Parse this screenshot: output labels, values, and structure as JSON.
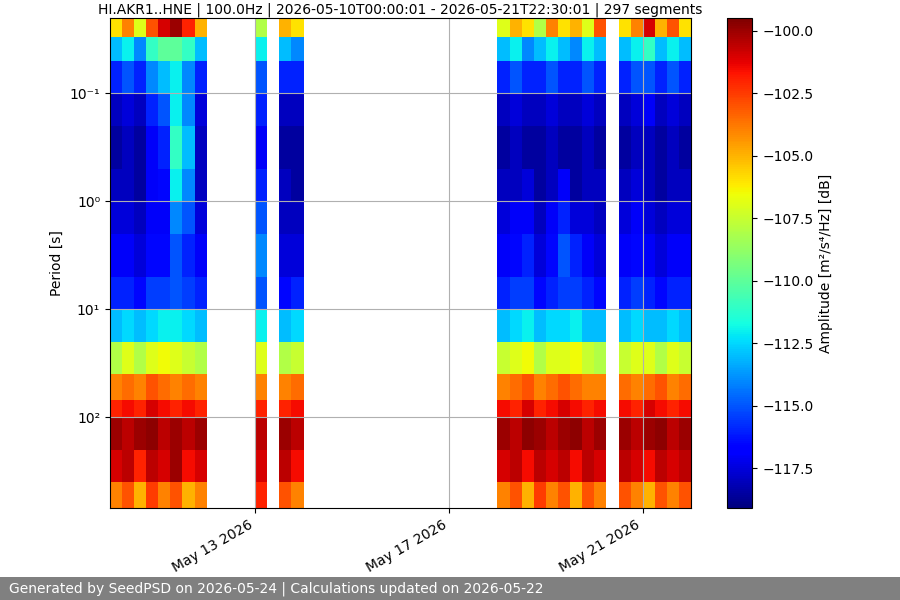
{
  "chart_data": {
    "type": "heatmap",
    "title": "HI.AKR1..HNE | 100.0Hz | 2026-05-10T00:00:01 - 2026-05-21T22:30:01 | 297 segments",
    "y_label": "Period [s]",
    "footer": "Generated by SeedPSD on 2026-05-24 | Calculations updated on 2026-05-22",
    "log": "y",
    "grid": true,
    "x": [
      "2026-05-10T00:00",
      "2026-05-10T06:00",
      "2026-05-10T12:00",
      "2026-05-10T18:00",
      "2026-05-11T00:00",
      "2026-05-11T06:00",
      "2026-05-11T12:00",
      "2026-05-11T18:00",
      "2026-05-12T00:00",
      "2026-05-12T06:00",
      "2026-05-12T12:00",
      "2026-05-12T18:00",
      "2026-05-13T00:00",
      "2026-05-13T06:00",
      "2026-05-13T12:00",
      "2026-05-13T18:00",
      "2026-05-14T00:00",
      "2026-05-14T06:00",
      "2026-05-14T12:00",
      "2026-05-14T18:00",
      "2026-05-15T00:00",
      "2026-05-15T06:00",
      "2026-05-15T12:00",
      "2026-05-15T18:00",
      "2026-05-16T00:00",
      "2026-05-16T06:00",
      "2026-05-16T12:00",
      "2026-05-16T18:00",
      "2026-05-17T00:00",
      "2026-05-17T06:00",
      "2026-05-17T12:00",
      "2026-05-17T18:00",
      "2026-05-18T00:00",
      "2026-05-18T06:00",
      "2026-05-18T12:00",
      "2026-05-18T18:00",
      "2026-05-19T00:00",
      "2026-05-19T06:00",
      "2026-05-19T12:00",
      "2026-05-19T18:00",
      "2026-05-20T00:00",
      "2026-05-20T06:00",
      "2026-05-20T12:00",
      "2026-05-20T18:00",
      "2026-05-21T00:00",
      "2026-05-21T06:00",
      "2026-05-21T12:00",
      "2026-05-21T18:00",
      "2026-05-22T00:00"
    ],
    "y": [
      0.02,
      0.03,
      0.05,
      0.1,
      0.2,
      0.5,
      1,
      2,
      5,
      10,
      20,
      40,
      70,
      100,
      200,
      400,
      700
    ],
    "xlim": [
      "2026-05-10T00:00",
      "2026-05-22T00:00"
    ],
    "xticks": [
      {
        "value": "2026-05-13",
        "label": "May 13 2026"
      },
      {
        "value": "2026-05-17",
        "label": "May 17 2026"
      },
      {
        "value": "2026-05-21",
        "label": "May 21 2026"
      }
    ],
    "ylim": [
      700,
      0.02
    ],
    "yticks": [
      {
        "value": 0.1,
        "label": "10⁻¹"
      },
      {
        "value": 1,
        "label": "10⁰"
      },
      {
        "value": 10,
        "label": "10¹"
      },
      {
        "value": 100,
        "label": "10²"
      }
    ],
    "cells": [
      [
        -106,
        -104,
        -107,
        -103,
        -101,
        -100,
        -102,
        -105,
        null,
        null,
        null,
        null,
        -108,
        null,
        -105,
        -106,
        null,
        null,
        null,
        null,
        null,
        null,
        null,
        null,
        null,
        null,
        null,
        null,
        null,
        null,
        null,
        null,
        -107,
        -105,
        -106,
        -108,
        -104,
        -106,
        -105,
        -107,
        -103,
        null,
        -106,
        -104,
        -101,
        -105,
        -103,
        -106
      ],
      [
        -113,
        -112,
        -114,
        -111,
        -110,
        -110,
        -111,
        -113,
        null,
        null,
        null,
        null,
        -112,
        null,
        -113,
        -114,
        null,
        null,
        null,
        null,
        null,
        null,
        null,
        null,
        null,
        null,
        null,
        null,
        null,
        null,
        null,
        null,
        -113,
        -112,
        -114,
        -113,
        -112,
        -113,
        -114,
        -112,
        -113,
        null,
        -113,
        -112,
        -111,
        -113,
        -112,
        -113
      ],
      [
        -116,
        -115,
        -116,
        -114,
        -113,
        -112,
        -114,
        -116,
        null,
        null,
        null,
        null,
        -115,
        null,
        -116,
        -116,
        null,
        null,
        null,
        null,
        null,
        null,
        null,
        null,
        null,
        null,
        null,
        null,
        null,
        null,
        null,
        null,
        -116,
        -115,
        -116,
        -116,
        -115,
        -116,
        -116,
        -115,
        -116,
        null,
        -116,
        -115,
        -115,
        -116,
        -115,
        -116
      ],
      [
        -118,
        -117.5,
        -118,
        -116,
        -115,
        -112,
        -114,
        -117.5,
        null,
        null,
        null,
        null,
        -116,
        null,
        -118,
        -118,
        null,
        null,
        null,
        null,
        null,
        null,
        null,
        null,
        null,
        null,
        null,
        null,
        null,
        null,
        null,
        null,
        -118,
        -117.5,
        -118,
        -118,
        -117.5,
        -118,
        -118,
        -117.5,
        -118,
        null,
        -118,
        -117.5,
        -117,
        -118,
        -117.5,
        -118
      ],
      [
        -118.5,
        -118,
        -118.5,
        -117,
        -116,
        -111,
        -113,
        -118,
        null,
        null,
        null,
        null,
        -117,
        null,
        -118.5,
        -118.5,
        null,
        null,
        null,
        null,
        null,
        null,
        null,
        null,
        null,
        null,
        null,
        null,
        null,
        null,
        null,
        null,
        -118.5,
        -118,
        -118.5,
        -118.5,
        -118,
        -118.5,
        -118.5,
        -118,
        -118.5,
        null,
        -118.5,
        -118,
        -118,
        -118.5,
        -118,
        -118.5
      ],
      [
        -118,
        -118,
        -118.5,
        -117,
        -116.5,
        -112,
        -114,
        -118,
        null,
        null,
        null,
        null,
        -116,
        null,
        -118,
        -118.5,
        null,
        null,
        null,
        null,
        null,
        null,
        null,
        null,
        null,
        null,
        null,
        null,
        null,
        null,
        null,
        null,
        -118,
        -118,
        -117.5,
        -118.5,
        -118,
        -117,
        -118.5,
        -118,
        -118,
        null,
        -118,
        -117.5,
        -118,
        -118.5,
        -118,
        -118
      ],
      [
        -117.5,
        -117.5,
        -118,
        -117,
        -117,
        -114,
        -115,
        -117.5,
        null,
        null,
        null,
        null,
        -115,
        null,
        -118,
        -118,
        null,
        null,
        null,
        null,
        null,
        null,
        null,
        null,
        null,
        null,
        null,
        null,
        null,
        null,
        null,
        null,
        -117.5,
        -117,
        -117,
        -118,
        -117,
        -116,
        -117.5,
        -117.5,
        -118,
        null,
        -117.5,
        -117,
        -117.5,
        -118,
        -117.5,
        -117.5
      ],
      [
        -117,
        -117,
        -117.5,
        -116.5,
        -116.5,
        -115,
        -116,
        -117,
        null,
        null,
        null,
        null,
        -114,
        null,
        -117.5,
        -117.5,
        null,
        null,
        null,
        null,
        null,
        null,
        null,
        null,
        null,
        null,
        null,
        null,
        null,
        null,
        null,
        null,
        -117,
        -116.5,
        -116,
        -117.5,
        -116.5,
        -115,
        -116,
        -117,
        -117.5,
        null,
        -117,
        -116.5,
        -117,
        -117.5,
        -117,
        -117
      ],
      [
        -116,
        -116,
        -116.5,
        -115.5,
        -115.5,
        -115,
        -115.5,
        -116,
        null,
        null,
        null,
        null,
        -115,
        null,
        -116.5,
        -116,
        null,
        null,
        null,
        null,
        null,
        null,
        null,
        null,
        null,
        null,
        null,
        null,
        null,
        null,
        null,
        null,
        -116,
        -115.5,
        -115.5,
        -116.5,
        -116,
        -115.5,
        -115.5,
        -116,
        -116.5,
        null,
        -116,
        -115.5,
        -116,
        -116.5,
        -116,
        -116
      ],
      [
        -113,
        -112.5,
        -113,
        -112.5,
        -112,
        -112,
        -112.5,
        -113,
        null,
        null,
        null,
        null,
        -112,
        null,
        -113,
        -112.5,
        null,
        null,
        null,
        null,
        null,
        null,
        null,
        null,
        null,
        null,
        null,
        null,
        null,
        null,
        null,
        null,
        -113,
        -112.5,
        -112,
        -113,
        -112.5,
        -112.5,
        -112,
        -113,
        -113,
        null,
        -113,
        -112.5,
        -113,
        -113,
        -112.5,
        -113
      ],
      [
        -108,
        -107,
        -108,
        -107,
        -106.5,
        -107,
        -107.5,
        -108,
        null,
        null,
        null,
        null,
        -107,
        null,
        -108,
        -107.5,
        null,
        null,
        null,
        null,
        null,
        null,
        null,
        null,
        null,
        null,
        null,
        null,
        null,
        null,
        null,
        null,
        -107.5,
        -107,
        -106.5,
        -108,
        -107,
        -107,
        -106.5,
        -107.5,
        -108,
        null,
        -107.5,
        -107,
        -107,
        -108,
        -107,
        -107.5
      ],
      [
        -104,
        -103.5,
        -104,
        -103,
        -103.5,
        -104,
        -103.5,
        -104,
        null,
        null,
        null,
        null,
        -104,
        null,
        -104,
        -103.5,
        null,
        null,
        null,
        null,
        null,
        null,
        null,
        null,
        null,
        null,
        null,
        null,
        null,
        null,
        null,
        null,
        -104,
        -103.5,
        -103,
        -104,
        -103.5,
        -103,
        -103.5,
        -104,
        -104,
        null,
        -103.5,
        -104,
        -103.5,
        -103,
        -104,
        -103.5
      ],
      [
        -102,
        -101.5,
        -102,
        -101,
        -101.5,
        -102,
        -101.5,
        -102,
        null,
        null,
        null,
        null,
        -102,
        null,
        -102,
        -101.5,
        null,
        null,
        null,
        null,
        null,
        null,
        null,
        null,
        null,
        null,
        null,
        null,
        null,
        null,
        null,
        null,
        -101.5,
        -102,
        -101,
        -102,
        -101.5,
        -101,
        -101.5,
        -102,
        -101.5,
        null,
        -101.5,
        -102,
        -101,
        -101.5,
        -102,
        -101.5
      ],
      [
        -100,
        -100.5,
        -100,
        -99.8,
        -100.5,
        -100,
        -100.5,
        -100,
        null,
        null,
        null,
        null,
        -100.5,
        null,
        -100,
        -100.5,
        null,
        null,
        null,
        null,
        null,
        null,
        null,
        null,
        null,
        null,
        null,
        null,
        null,
        null,
        null,
        null,
        -100,
        -100.5,
        -99.8,
        -100,
        -100.5,
        -100,
        -99.8,
        -100.5,
        -100,
        null,
        -100,
        -100.5,
        -100,
        -99.8,
        -100.5,
        -100
      ],
      [
        -101,
        -100.5,
        -102,
        -100.5,
        -101,
        -100,
        -101.5,
        -101,
        null,
        null,
        null,
        null,
        -101,
        null,
        -100.5,
        -101.5,
        null,
        null,
        null,
        null,
        null,
        null,
        null,
        null,
        null,
        null,
        null,
        null,
        null,
        null,
        null,
        null,
        -101,
        -100.5,
        -101.5,
        -100.5,
        -101,
        -100.5,
        -101.5,
        -100.5,
        -101,
        null,
        -100.5,
        -101,
        -101.5,
        -100.5,
        -101,
        -100.5
      ],
      [
        -104,
        -103,
        -105,
        -102.5,
        -104,
        -103,
        -105,
        -104,
        null,
        null,
        null,
        null,
        -102,
        null,
        -103,
        -104,
        null,
        null,
        null,
        null,
        null,
        null,
        null,
        null,
        null,
        null,
        null,
        null,
        null,
        null,
        null,
        null,
        -104,
        -103,
        -105,
        -102.5,
        -104,
        -103,
        -105,
        -103,
        -104,
        null,
        -103,
        -104,
        -105,
        -103,
        -104,
        -103
      ]
    ],
    "colorbar": {
      "label": "Amplitude [m²/s⁴/Hz] [dB]",
      "lim": [
        -119.1,
        -99.5
      ],
      "ticks": [
        {
          "value": -117.5,
          "label": "−117.5"
        },
        {
          "value": -115.0,
          "label": "−115.0"
        },
        {
          "value": -112.5,
          "label": "−112.5"
        },
        {
          "value": -110.0,
          "label": "−110.0"
        },
        {
          "value": -107.5,
          "label": "−107.5"
        },
        {
          "value": -105.0,
          "label": "−105.0"
        },
        {
          "value": -102.5,
          "label": "−102.5"
        },
        {
          "value": -100.0,
          "label": "−100.0"
        }
      ]
    }
  }
}
